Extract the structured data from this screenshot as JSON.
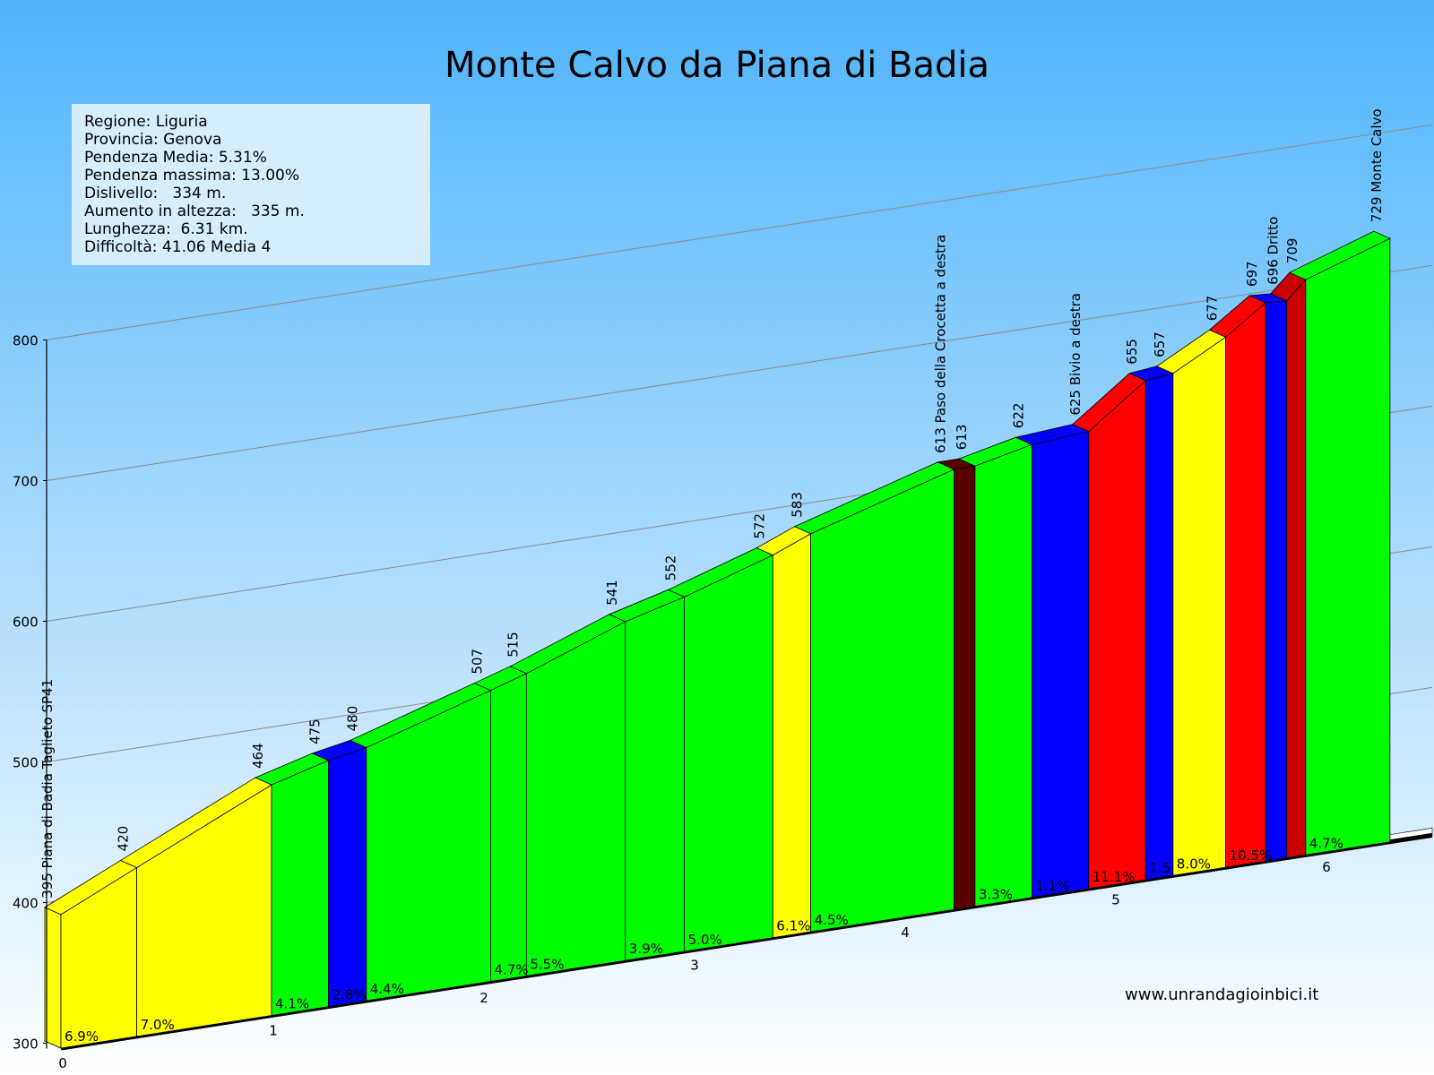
{
  "title": "Monte Calvo da Piana di Badia",
  "info": {
    "regione": "Regione: Liguria",
    "provincia": "Provincia: Genova",
    "pendenza_media": "Pendenza Media: 5.31%",
    "pendenza_massima": "Pendenza massima: 13.00%",
    "dislivello": "Dislivello:   334 m.",
    "aumento": "Aumento in altezza:   335 m.",
    "lunghezza": "Lunghezza:  6.31 km.",
    "difficolta": "Difficoltà: 41.06 Media 4"
  },
  "website": "www.unrandagioinbici.it",
  "colors": {
    "sky_top": "#4fb4fb",
    "sky_bottom": "#ffffff",
    "green": "#00ff00",
    "yellow": "#ffff00",
    "blue": "#0000ff",
    "red": "#ff0000",
    "darkred": "#c80000",
    "maroon": "#5a0000",
    "axis": "#000000",
    "gridline": "#8c8c8c"
  },
  "chart_data": {
    "type": "area",
    "title": "Monte Calvo da Piana di Badia",
    "xlabel": "",
    "ylabel": "",
    "x_unit": "km",
    "y_unit": "m",
    "ylim": [
      300,
      800
    ],
    "y_ticks": [
      "300",
      "400",
      "500",
      "600",
      "700",
      "800"
    ],
    "x_ticks": [
      "0",
      "1",
      "2",
      "3",
      "4",
      "5",
      "6"
    ],
    "grid": true,
    "points": [
      {
        "km": 0.0,
        "elev": 395,
        "label": "395 Piana di Badia Taglieto SP41"
      },
      {
        "km": 0.36,
        "elev": 420,
        "label": "420"
      },
      {
        "km": 1.0,
        "elev": 464,
        "label": "464"
      },
      {
        "km": 1.27,
        "elev": 475,
        "label": "475"
      },
      {
        "km": 1.45,
        "elev": 480,
        "label": "480"
      },
      {
        "km": 2.04,
        "elev": 507,
        "label": "507"
      },
      {
        "km": 2.21,
        "elev": 515,
        "label": "515"
      },
      {
        "km": 2.68,
        "elev": 541,
        "label": "541"
      },
      {
        "km": 2.96,
        "elev": 552,
        "label": "552"
      },
      {
        "km": 3.38,
        "elev": 572,
        "label": "572"
      },
      {
        "km": 3.56,
        "elev": 583,
        "label": "583"
      },
      {
        "km": 4.24,
        "elev": 613,
        "label": "613 Paso della Crocetta a destra"
      },
      {
        "km": 4.34,
        "elev": 613,
        "label": "613"
      },
      {
        "km": 4.61,
        "elev": 622,
        "label": "622"
      },
      {
        "km": 4.88,
        "elev": 625,
        "label": "625 Bivio a destra"
      },
      {
        "km": 5.15,
        "elev": 655,
        "label": "655"
      },
      {
        "km": 5.28,
        "elev": 657,
        "label": "657"
      },
      {
        "km": 5.53,
        "elev": 677,
        "label": "677"
      },
      {
        "km": 5.72,
        "elev": 697,
        "label": "697"
      },
      {
        "km": 5.82,
        "elev": 696,
        "label": "696 Dritto"
      },
      {
        "km": 5.91,
        "elev": 709,
        "label": "709"
      },
      {
        "km": 6.31,
        "elev": 729,
        "label": "729 Monte Calvo"
      }
    ],
    "segments": [
      {
        "grade": "6.9%",
        "color": "yellow"
      },
      {
        "grade": "7.0%",
        "color": "yellow"
      },
      {
        "grade": "4.1%",
        "color": "green"
      },
      {
        "grade": "2.8%",
        "color": "blue"
      },
      {
        "grade": "4.4%",
        "color": "green"
      },
      {
        "grade": "4.7%",
        "color": "green"
      },
      {
        "grade": "5.5%",
        "color": "green"
      },
      {
        "grade": "3.9%",
        "color": "green"
      },
      {
        "grade": "5.0%",
        "color": "green"
      },
      {
        "grade": "6.1%",
        "color": "yellow"
      },
      {
        "grade": "4.5%",
        "color": "green"
      },
      {
        "grade": "",
        "color": "maroon"
      },
      {
        "grade": "3.3%",
        "color": "green"
      },
      {
        "grade": "1.1%",
        "color": "blue"
      },
      {
        "grade": "11.1%",
        "color": "red"
      },
      {
        "grade": "1.5",
        "color": "blue"
      },
      {
        "grade": "8.0%",
        "color": "yellow"
      },
      {
        "grade": "10.5%",
        "color": "red"
      },
      {
        "grade": "",
        "color": "blue"
      },
      {
        "grade": "",
        "color": "darkred"
      },
      {
        "grade": "4.7%",
        "color": "green"
      }
    ]
  }
}
